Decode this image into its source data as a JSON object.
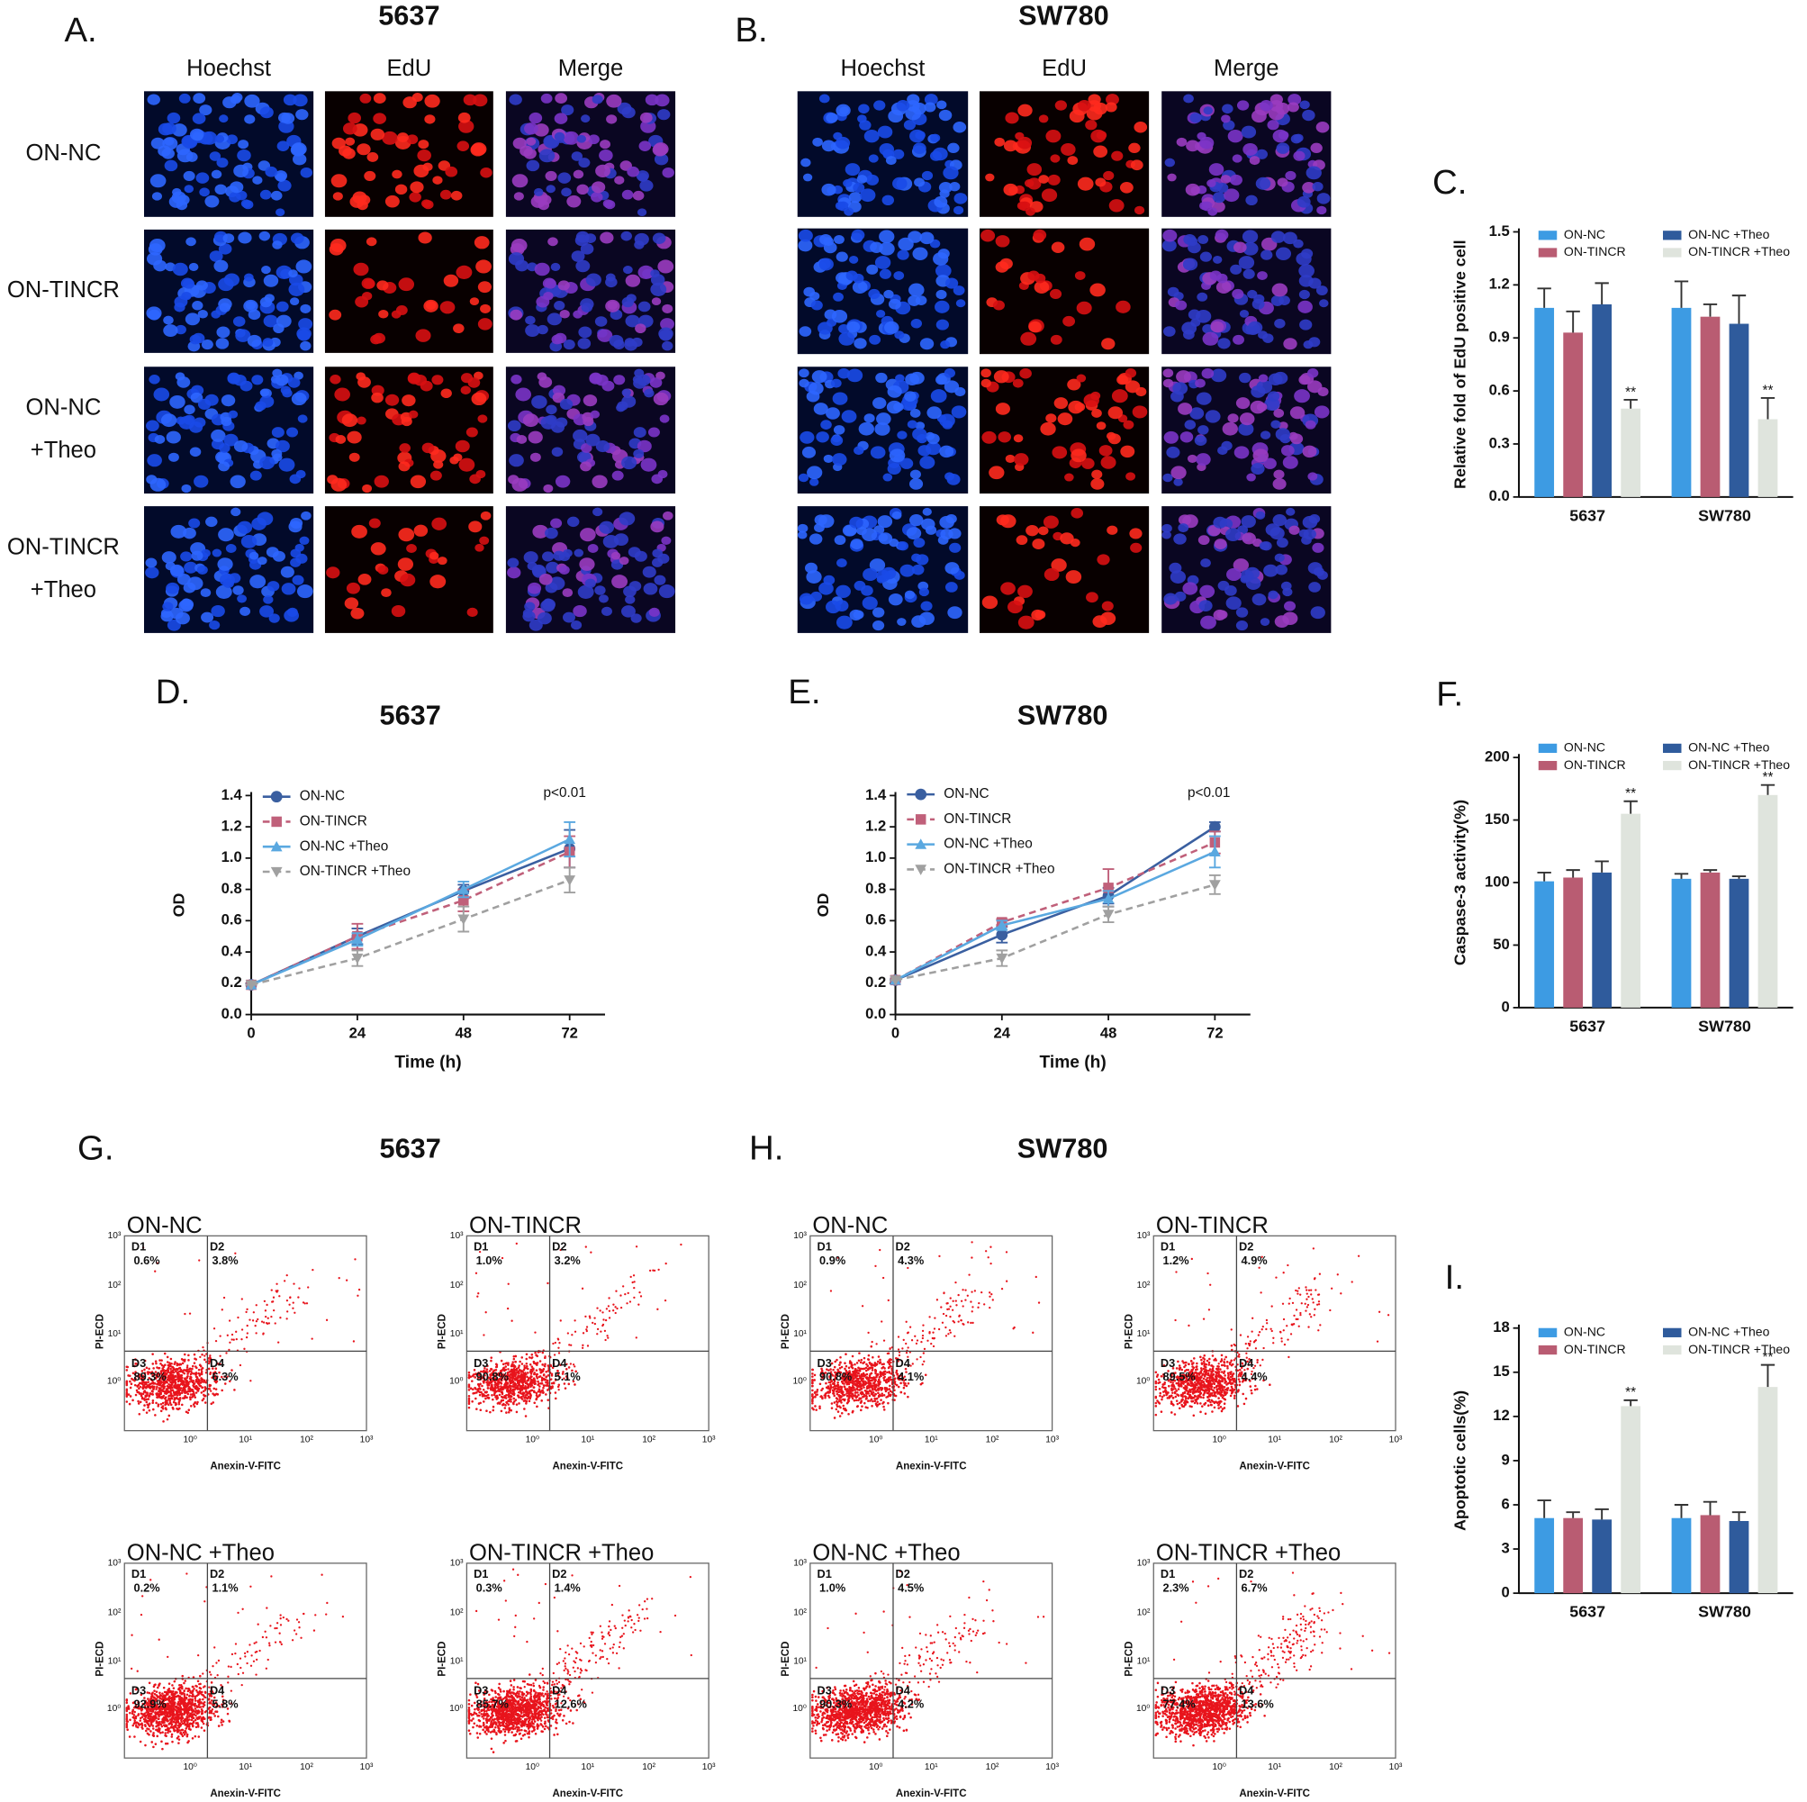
{
  "microscopy": {
    "panels": [
      {
        "label": "A.",
        "title": "5637",
        "columns": [
          "Hoechst",
          "EdU",
          "Merge"
        ],
        "rows": [
          [
            "ON-NC"
          ],
          [
            "ON-TINCR"
          ],
          [
            "ON-NC",
            "+Theo"
          ],
          [
            "ON-TINCR",
            "+Theo"
          ]
        ]
      },
      {
        "label": "B.",
        "title": "SW780",
        "columns": [
          "Hoechst",
          "EdU",
          "Merge"
        ]
      }
    ]
  },
  "chart_data": [
    {
      "type": "bar",
      "label": "C.",
      "ylabel": "Relative fold of EdU positive cell",
      "categories": [
        "5637",
        "SW780"
      ],
      "ylim": [
        0,
        1.5
      ],
      "yticks": [
        {
          "value": 0,
          "label": "0.0"
        },
        0.3,
        0.6,
        0.9,
        1.2,
        1.5
      ],
      "series": [
        {
          "name": "ON-NC",
          "color": "#3d9be3",
          "values": [
            1.07,
            1.07
          ],
          "errors": [
            0.11,
            0.15
          ]
        },
        {
          "name": "ON-TINCR",
          "color": "#b95c72",
          "values": [
            0.93,
            1.02
          ],
          "errors": [
            0.12,
            0.07
          ]
        },
        {
          "name": "ON-NC +Theo",
          "color": "#2f5b9c",
          "values": [
            1.09,
            0.98
          ],
          "errors": [
            0.12,
            0.16
          ]
        },
        {
          "name": "ON-TINCR +Theo",
          "color": "#dfe4dd",
          "values": [
            0.5,
            0.44
          ],
          "errors": [
            0.05,
            0.12
          ],
          "annotations": [
            "**",
            "**"
          ]
        }
      ]
    },
    {
      "type": "line",
      "label": "D.",
      "title": "5637",
      "xlabel": "Time (h)",
      "ylabel": "OD",
      "annotation": "p<0.01",
      "x": [
        0,
        24,
        48,
        72
      ],
      "xlim": [
        0,
        80
      ],
      "xticks": [
        0,
        24,
        48,
        72
      ],
      "ylim": [
        0,
        1.4
      ],
      "yticks": [
        {
          "value": 0,
          "label": "0.0"
        },
        0.2,
        0.4,
        0.6,
        0.8,
        {
          "value": 1,
          "label": "1.0"
        },
        1.2,
        1.4
      ],
      "series": [
        {
          "name": "ON-NC",
          "color": "#3a5fa0",
          "marker": "circle",
          "dashed": false,
          "values": [
            0.19,
            0.5,
            0.79,
            1.06
          ],
          "errors": [
            0,
            0.05,
            0.04,
            0.12
          ]
        },
        {
          "name": "ON-TINCR",
          "color": "#c0607a",
          "marker": "square",
          "dashed": true,
          "values": [
            0.19,
            0.5,
            0.73,
            1.04
          ],
          "errors": [
            0,
            0.08,
            0.07,
            0.1
          ]
        },
        {
          "name": "ON-NC +Theo",
          "color": "#5aa8e0",
          "marker": "triangle",
          "dashed": false,
          "values": [
            0.19,
            0.48,
            0.8,
            1.12
          ],
          "errors": [
            0,
            0.04,
            0.05,
            0.11
          ]
        },
        {
          "name": "ON-TINCR +Theo",
          "color": "#a0a0a0",
          "marker": "triangle-down",
          "dashed": true,
          "values": [
            0.19,
            0.36,
            0.61,
            0.86
          ],
          "errors": [
            0,
            0.05,
            0.08,
            0.08
          ]
        }
      ]
    },
    {
      "type": "line",
      "label": "E.",
      "title": "SW780",
      "xlabel": "Time (h)",
      "ylabel": "OD",
      "annotation": "p<0.01",
      "x": [
        0,
        24,
        48,
        72
      ],
      "xlim": [
        0,
        80
      ],
      "xticks": [
        0,
        24,
        48,
        72
      ],
      "ylim": [
        0,
        1.4
      ],
      "yticks": [
        {
          "value": 0,
          "label": "0.0"
        },
        0.2,
        0.4,
        0.6,
        0.8,
        {
          "value": 1,
          "label": "1.0"
        },
        1.2,
        1.4
      ],
      "series": [
        {
          "name": "ON-NC",
          "color": "#3a5fa0",
          "marker": "circle",
          "dashed": false,
          "values": [
            0.22,
            0.51,
            0.76,
            1.2
          ],
          "errors": [
            0,
            0.05,
            0.05,
            0.03
          ]
        },
        {
          "name": "ON-TINCR",
          "color": "#c0607a",
          "marker": "square",
          "dashed": true,
          "values": [
            0.22,
            0.59,
            0.81,
            1.1
          ],
          "errors": [
            0,
            0.02,
            0.12,
            0.07
          ]
        },
        {
          "name": "ON-NC +Theo",
          "color": "#5aa8e0",
          "marker": "triangle",
          "dashed": false,
          "values": [
            0.22,
            0.57,
            0.74,
            1.04
          ],
          "errors": [
            0,
            0.03,
            0.05,
            0.1
          ]
        },
        {
          "name": "ON-TINCR +Theo",
          "color": "#a0a0a0",
          "marker": "triangle-down",
          "dashed": true,
          "values": [
            0.22,
            0.36,
            0.64,
            0.83
          ],
          "errors": [
            0,
            0.05,
            0.05,
            0.06
          ]
        }
      ]
    },
    {
      "type": "bar",
      "label": "F.",
      "ylabel": "Caspase-3 activity(%)",
      "categories": [
        "5637",
        "SW780"
      ],
      "ylim": [
        0,
        200
      ],
      "yticks": [
        0,
        50,
        100,
        150,
        200
      ],
      "series": [
        {
          "name": "ON-NC",
          "color": "#3d9be3",
          "values": [
            101,
            103
          ],
          "errors": [
            7,
            4
          ]
        },
        {
          "name": "ON-TINCR",
          "color": "#b95c72",
          "values": [
            104,
            108
          ],
          "errors": [
            6,
            2
          ]
        },
        {
          "name": "ON-NC +Theo",
          "color": "#2f5b9c",
          "values": [
            108,
            103
          ],
          "errors": [
            9,
            2
          ]
        },
        {
          "name": "ON-TINCR +Theo",
          "color": "#dfe4dd",
          "values": [
            155,
            170
          ],
          "errors": [
            10,
            8
          ],
          "annotations": [
            "**",
            "**"
          ]
        }
      ]
    },
    {
      "type": "bar",
      "label": "I.",
      "ylabel": "Apoptotic cells(%)",
      "categories": [
        "5637",
        "SW780"
      ],
      "ylim": [
        0,
        18
      ],
      "yticks": [
        0,
        3,
        6,
        9,
        12,
        15,
        18
      ],
      "series": [
        {
          "name": "ON-NC",
          "color": "#3d9be3",
          "values": [
            5.1,
            5.1
          ],
          "errors": [
            1.2,
            0.9
          ]
        },
        {
          "name": "ON-TINCR",
          "color": "#b95c72",
          "values": [
            5.1,
            5.3
          ],
          "errors": [
            0.4,
            0.9
          ]
        },
        {
          "name": "ON-NC +Theo",
          "color": "#2f5b9c",
          "values": [
            5.0,
            4.9
          ],
          "errors": [
            0.7,
            0.6
          ]
        },
        {
          "name": "ON-TINCR +Theo",
          "color": "#dfe4dd",
          "values": [
            12.7,
            14.0
          ],
          "errors": [
            0.4,
            1.5
          ],
          "annotations": [
            "**",
            "**"
          ]
        }
      ]
    }
  ],
  "flow": {
    "xlabel": "Anexin-V-FITC",
    "ylabel": "PI-ECD",
    "ticks": [
      "10⁰",
      "10¹",
      "10²",
      "10³"
    ],
    "panels": [
      {
        "label": "G.",
        "title": "5637",
        "plots": [
          {
            "title": "ON-NC",
            "quadrants": [
              {
                "name": "D1",
                "percent": "0.6%"
              },
              {
                "name": "D2",
                "percent": "3.8%"
              },
              {
                "name": "D3",
                "percent": "89.3%"
              },
              {
                "name": "D4",
                "percent": "6.3%"
              }
            ]
          },
          {
            "title": "ON-TINCR",
            "quadrants": [
              {
                "name": "D1",
                "percent": "1.0%"
              },
              {
                "name": "D2",
                "percent": "3.2%"
              },
              {
                "name": "D3",
                "percent": "90.8%"
              },
              {
                "name": "D4",
                "percent": "5.1%"
              }
            ]
          },
          {
            "title": "ON-NC +Theo",
            "quadrants": [
              {
                "name": "D1",
                "percent": "0.2%"
              },
              {
                "name": "D2",
                "percent": "1.1%"
              },
              {
                "name": "D3",
                "percent": "92.9%"
              },
              {
                "name": "D4",
                "percent": "5.8%"
              }
            ]
          },
          {
            "title": "ON-TINCR +Theo",
            "quadrants": [
              {
                "name": "D1",
                "percent": "0.3%"
              },
              {
                "name": "D2",
                "percent": "1.4%"
              },
              {
                "name": "D3",
                "percent": "85.7%"
              },
              {
                "name": "D4",
                "percent": "12.6%"
              }
            ]
          }
        ]
      },
      {
        "label": "H.",
        "title": "SW780",
        "plots": [
          {
            "title": "ON-NC",
            "quadrants": [
              {
                "name": "D1",
                "percent": "0.9%"
              },
              {
                "name": "D2",
                "percent": "4.3%"
              },
              {
                "name": "D3",
                "percent": "90.8%"
              },
              {
                "name": "D4",
                "percent": "4.1%"
              }
            ]
          },
          {
            "title": "ON-TINCR",
            "quadrants": [
              {
                "name": "D1",
                "percent": "1.2%"
              },
              {
                "name": "D2",
                "percent": "4.9%"
              },
              {
                "name": "D3",
                "percent": "89.5%"
              },
              {
                "name": "D4",
                "percent": "4.4%"
              }
            ]
          },
          {
            "title": "ON-NC +Theo",
            "quadrants": [
              {
                "name": "D1",
                "percent": "1.0%"
              },
              {
                "name": "D2",
                "percent": "4.5%"
              },
              {
                "name": "D3",
                "percent": "90.3%"
              },
              {
                "name": "D4",
                "percent": "4.2%"
              }
            ]
          },
          {
            "title": "ON-TINCR +Theo",
            "quadrants": [
              {
                "name": "D1",
                "percent": "2.3%"
              },
              {
                "name": "D2",
                "percent": "6.7%"
              },
              {
                "name": "D3",
                "percent": "77.4%"
              },
              {
                "name": "D4",
                "percent": "13.6%"
              }
            ]
          }
        ]
      }
    ]
  }
}
